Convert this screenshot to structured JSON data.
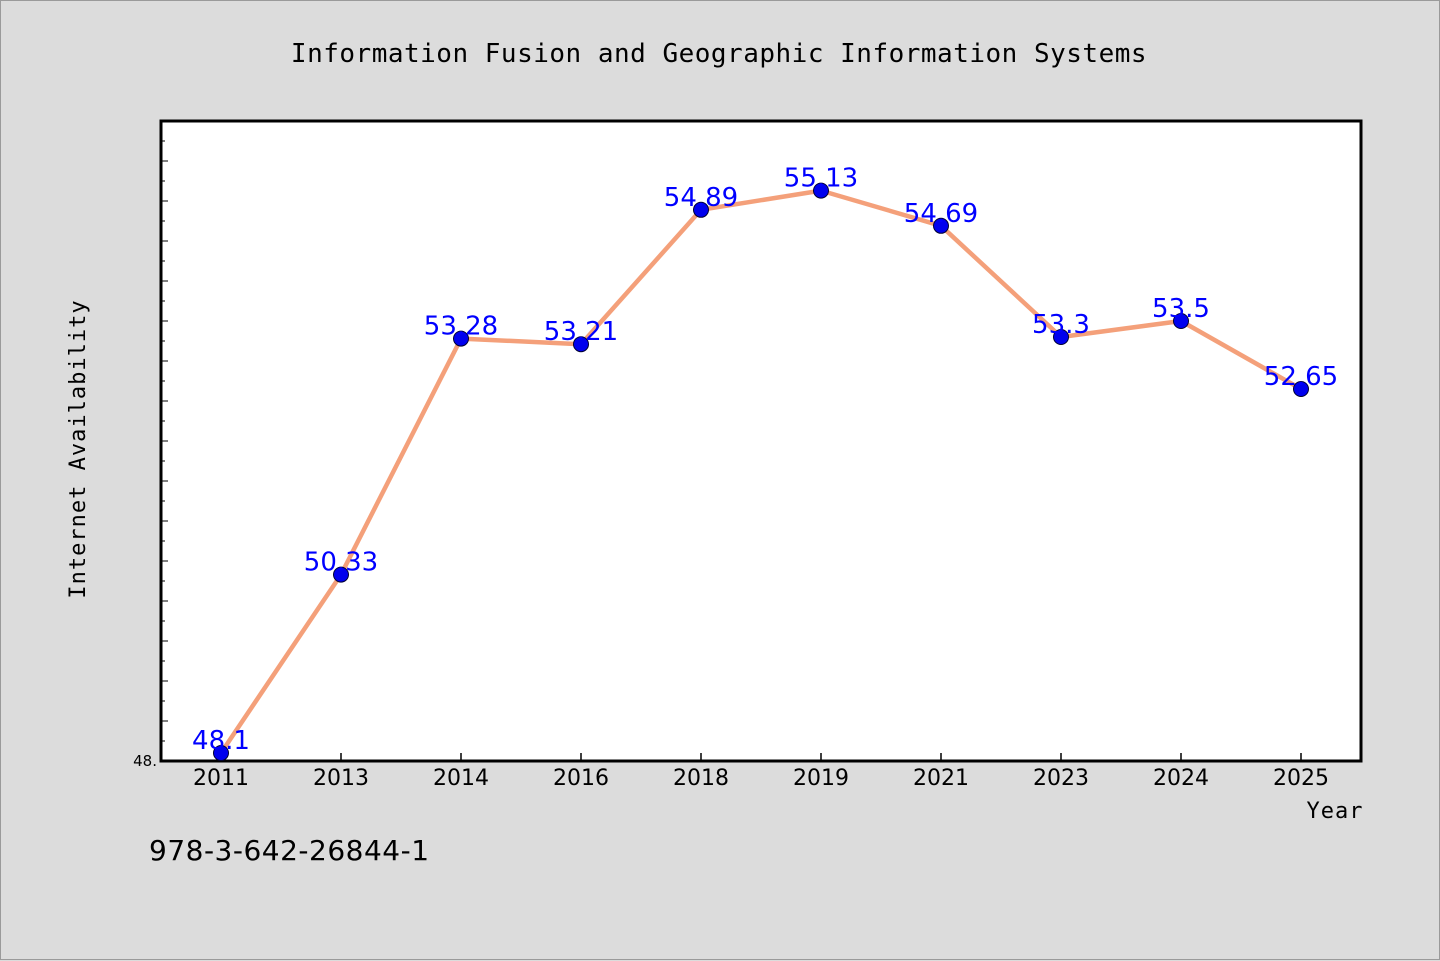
{
  "footer_text": "978-3-642-26844-1",
  "chart_data": {
    "type": "line",
    "title": "Information Fusion and Geographic Information Systems",
    "xlabel": "Year",
    "ylabel": "Internet Availability",
    "categories": [
      "2011",
      "2013",
      "2014",
      "2016",
      "2018",
      "2019",
      "2021",
      "2023",
      "2024",
      "2025"
    ],
    "series": [
      {
        "values": [
          48.1,
          50.33,
          53.28,
          53.21,
          54.89,
          55.13,
          54.69,
          53.3,
          53.5,
          52.65
        ],
        "point_labels": [
          "48.1",
          "50.33",
          "53.28",
          "53.21",
          "54.89",
          "55.13",
          "54.69",
          "53.3",
          "53.5",
          "52.65"
        ],
        "line_color": "#f4a07a",
        "marker_color": "#0000ee"
      }
    ],
    "ylim": [
      48.0,
      56.0
    ],
    "y_tick_labels": [
      "48."
    ],
    "label_color": "#0000ff",
    "grid": false,
    "legend": "none"
  }
}
